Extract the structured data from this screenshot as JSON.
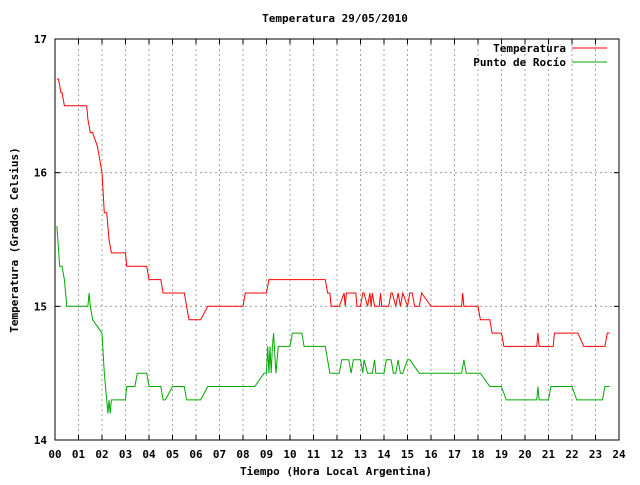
{
  "chart_data": {
    "type": "line",
    "title": "Temperatura 29/05/2010",
    "xlabel": "Tiempo (Hora Local Argentina)",
    "ylabel": "Temperatura (Grados Celsius)",
    "xlim": [
      0,
      24
    ],
    "ylim": [
      14,
      17
    ],
    "x_ticks": [
      "00",
      "01",
      "02",
      "03",
      "04",
      "05",
      "06",
      "07",
      "08",
      "09",
      "10",
      "11",
      "12",
      "13",
      "14",
      "15",
      "16",
      "17",
      "18",
      "19",
      "20",
      "21",
      "22",
      "23",
      "24"
    ],
    "y_ticks": [
      "14",
      "15",
      "16",
      "17"
    ],
    "grid": true,
    "legend_position": "top-right",
    "series": [
      {
        "name": "Temperatura",
        "color": "#ff0000",
        "x": [
          0.08,
          0.15,
          0.25,
          0.3,
          0.4,
          0.5,
          1.0,
          1.35,
          1.4,
          1.5,
          1.6,
          1.8,
          1.9,
          2.0,
          2.1,
          2.2,
          2.25,
          2.3,
          2.4,
          2.45,
          2.5,
          2.55,
          2.7,
          3.0,
          3.05,
          3.1,
          3.3,
          3.9,
          4.0,
          4.1,
          4.5,
          4.6,
          5.0,
          5.5,
          5.6,
          5.7,
          5.8,
          6.0,
          6.1,
          6.2,
          6.5,
          7.0,
          7.5,
          7.9,
          8.0,
          8.1,
          8.5,
          8.6,
          9.0,
          9.1,
          9.5,
          10.0,
          10.5,
          11.0,
          11.5,
          11.6,
          11.7,
          11.75,
          12.0,
          12.1,
          12.3,
          12.35,
          12.4,
          12.6,
          12.8,
          12.85,
          13.0,
          13.1,
          13.15,
          13.3,
          13.4,
          13.45,
          13.5,
          13.6,
          13.8,
          13.85,
          13.9,
          14.0,
          14.2,
          14.3,
          14.35,
          14.5,
          14.6,
          14.7,
          14.75,
          14.8,
          15.0,
          15.1,
          15.2,
          15.3,
          15.5,
          15.6,
          16.0,
          16.5,
          17.0,
          17.3,
          17.35,
          17.4,
          17.5,
          18.0,
          18.1,
          18.3,
          18.5,
          18.6,
          19.0,
          19.1,
          19.2,
          19.5,
          20.0,
          20.5,
          20.55,
          20.6,
          21.0,
          21.2,
          21.25,
          21.5,
          22.0,
          22.2,
          22.25,
          22.5,
          23.0,
          23.2,
          23.3,
          23.4,
          23.5,
          23.6
        ],
        "y": [
          16.7,
          16.7,
          16.6,
          16.6,
          16.5,
          16.5,
          16.5,
          16.5,
          16.4,
          16.3,
          16.3,
          16.2,
          16.1,
          16.0,
          15.7,
          15.7,
          15.6,
          15.5,
          15.4,
          15.4,
          15.4,
          15.4,
          15.4,
          15.4,
          15.3,
          15.3,
          15.3,
          15.3,
          15.2,
          15.2,
          15.2,
          15.1,
          15.1,
          15.1,
          15.0,
          14.9,
          14.9,
          14.9,
          14.9,
          14.9,
          15.0,
          15.0,
          15.0,
          15.0,
          15.0,
          15.1,
          15.1,
          15.1,
          15.1,
          15.2,
          15.2,
          15.2,
          15.2,
          15.2,
          15.2,
          15.1,
          15.1,
          15.0,
          15.0,
          15.0,
          15.1,
          15.0,
          15.1,
          15.1,
          15.1,
          15.0,
          15.0,
          15.1,
          15.1,
          15.0,
          15.1,
          15.0,
          15.1,
          15.0,
          15.0,
          15.1,
          15.0,
          15.0,
          15.0,
          15.1,
          15.1,
          15.0,
          15.1,
          15.0,
          15.05,
          15.1,
          15.0,
          15.1,
          15.1,
          15.0,
          15.0,
          15.1,
          15.0,
          15.0,
          15.0,
          15.0,
          15.1,
          15.0,
          15.0,
          15.0,
          14.9,
          14.9,
          14.9,
          14.8,
          14.8,
          14.7,
          14.7,
          14.7,
          14.7,
          14.7,
          14.8,
          14.7,
          14.7,
          14.7,
          14.8,
          14.8,
          14.8,
          14.8,
          14.8,
          14.7,
          14.7,
          14.7,
          14.7,
          14.7,
          14.8,
          14.8
        ],
        "_comment": ""
      },
      {
        "name": "Punto de Rocío",
        "color": "#00aa00",
        "x": [
          0.08,
          0.2,
          0.3,
          0.4,
          0.5,
          0.6,
          1.0,
          1.4,
          1.45,
          1.5,
          1.6,
          2.0,
          2.1,
          2.2,
          2.25,
          2.3,
          2.35,
          2.4,
          2.45,
          2.5,
          2.55,
          2.6,
          2.7,
          3.0,
          3.05,
          3.4,
          3.5,
          3.6,
          3.9,
          4.0,
          4.5,
          4.6,
          4.7,
          5.0,
          5.5,
          5.6,
          6.0,
          6.1,
          6.2,
          6.5,
          7.0,
          7.5,
          8.0,
          8.5,
          8.9,
          9.0,
          9.05,
          9.1,
          9.15,
          9.2,
          9.25,
          9.3,
          9.4,
          9.5,
          9.6,
          10.0,
          10.1,
          10.5,
          10.6,
          10.9,
          11.0,
          11.5,
          11.6,
          11.7,
          12.0,
          12.1,
          12.2,
          12.3,
          12.5,
          12.6,
          12.7,
          12.8,
          13.0,
          13.1,
          13.15,
          13.3,
          13.5,
          13.6,
          13.65,
          14.0,
          14.1,
          14.3,
          14.4,
          14.5,
          14.6,
          14.7,
          14.8,
          15.0,
          15.1,
          15.5,
          15.6,
          16.0,
          16.5,
          17.0,
          17.3,
          17.4,
          17.5,
          18.0,
          18.1,
          18.5,
          18.6,
          19.0,
          19.2,
          19.5,
          20.0,
          20.5,
          20.55,
          20.6,
          21.0,
          21.1,
          21.5,
          22.0,
          22.2,
          22.5,
          23.0,
          23.3,
          23.4,
          23.6
        ],
        "y": [
          15.6,
          15.3,
          15.3,
          15.2,
          15.0,
          15.0,
          15.0,
          15.0,
          15.1,
          15.0,
          14.9,
          14.8,
          14.5,
          14.3,
          14.2,
          14.3,
          14.2,
          14.3,
          14.3,
          14.3,
          14.3,
          14.3,
          14.3,
          14.3,
          14.4,
          14.4,
          14.5,
          14.5,
          14.5,
          14.4,
          14.4,
          14.3,
          14.3,
          14.4,
          14.4,
          14.3,
          14.3,
          14.3,
          14.3,
          14.4,
          14.4,
          14.4,
          14.4,
          14.4,
          14.5,
          14.5,
          14.7,
          14.5,
          14.7,
          14.5,
          14.7,
          14.8,
          14.5,
          14.7,
          14.7,
          14.7,
          14.8,
          14.8,
          14.7,
          14.7,
          14.7,
          14.7,
          14.6,
          14.5,
          14.5,
          14.5,
          14.6,
          14.6,
          14.6,
          14.5,
          14.6,
          14.6,
          14.6,
          14.5,
          14.6,
          14.5,
          14.5,
          14.6,
          14.5,
          14.5,
          14.6,
          14.6,
          14.5,
          14.5,
          14.6,
          14.5,
          14.5,
          14.6,
          14.6,
          14.5,
          14.5,
          14.5,
          14.5,
          14.5,
          14.5,
          14.6,
          14.5,
          14.5,
          14.5,
          14.4,
          14.4,
          14.4,
          14.3,
          14.3,
          14.3,
          14.3,
          14.4,
          14.3,
          14.3,
          14.4,
          14.4,
          14.4,
          14.3,
          14.3,
          14.3,
          14.3,
          14.4,
          14.4
        ],
        "_comment": ""
      }
    ]
  }
}
